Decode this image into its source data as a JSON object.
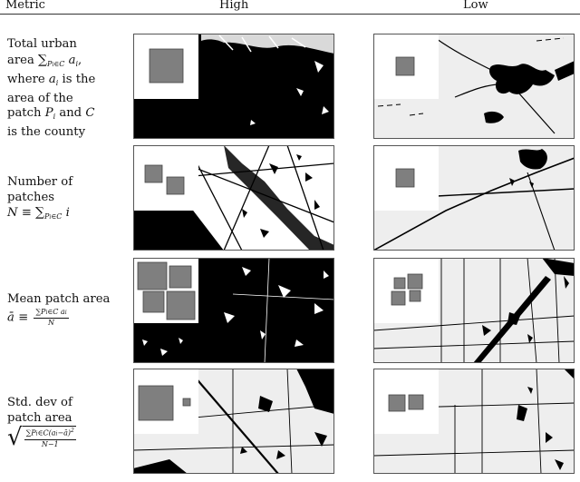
{
  "table": {
    "header": {
      "metric": "Metric",
      "high": "High",
      "low": "Low"
    },
    "rows": [
      {
        "lines": [
          "Total urban",
          "area",
          "where",
          "is the",
          "area of the",
          "patch",
          "and",
          "is the county"
        ],
        "math": {
          "sum": "∑",
          "sub": "P",
          "subi": "i",
          "in": "∈C",
          "a": "a",
          "ai_sub": "i",
          "P": "P",
          "C": "C"
        }
      },
      {
        "lines": [
          "Number of",
          "patches"
        ],
        "math": {
          "N": "N",
          "equiv": "≡",
          "sum": "∑",
          "sub": "P",
          "subi": "i",
          "in": "∈C",
          "i": "i"
        }
      },
      {
        "lines": [
          "Mean patch area"
        ],
        "math": {
          "abar": "ā",
          "equiv": "≡",
          "num": "∑P",
          "numi": "i",
          "numrest": "∈C a",
          "numai": "i",
          "den": "N"
        }
      },
      {
        "lines": [
          "Std. dev of",
          "patch area"
        ],
        "math": {
          "num": "∑P",
          "numi": "i",
          "numrest": "∈C(a",
          "numai": "i",
          "numtail": "−ā)",
          "sq": "2",
          "den": "N−1"
        }
      }
    ]
  }
}
